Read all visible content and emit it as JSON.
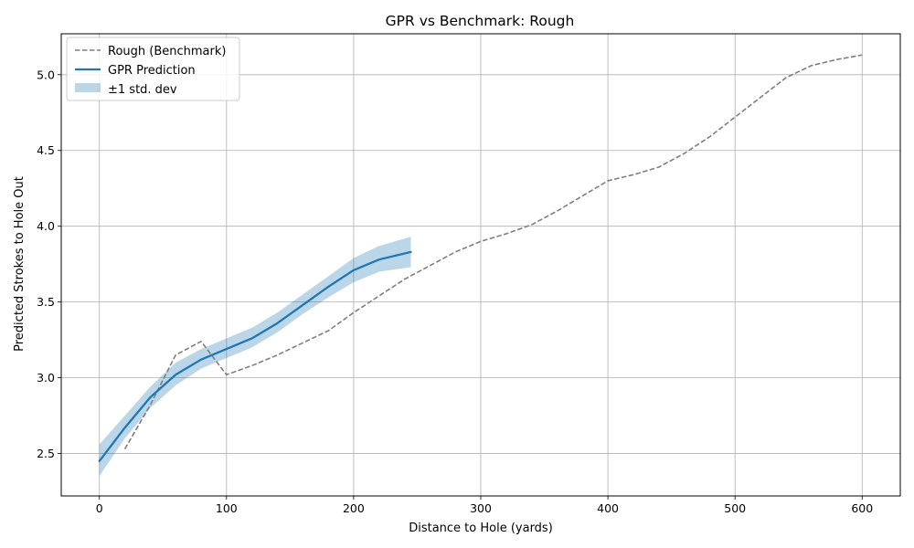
{
  "chart_data": {
    "type": "line",
    "title": "GPR vs Benchmark: Rough",
    "xlabel": "Distance to Hole (yards)",
    "ylabel": "Predicted Strokes to Hole Out",
    "xlim": [
      -30,
      630
    ],
    "ylim": [
      2.22,
      5.27
    ],
    "xticks": [
      0,
      100,
      200,
      300,
      400,
      500,
      600
    ],
    "yticks": [
      2.5,
      3.0,
      3.5,
      4.0,
      4.5,
      5.0
    ],
    "xtick_labels": [
      "0",
      "100",
      "200",
      "300",
      "400",
      "500",
      "600"
    ],
    "ytick_labels": [
      "2.5",
      "3.0",
      "3.5",
      "4.0",
      "4.5",
      "5.0"
    ],
    "grid": true,
    "legend_position": "top-left",
    "series": [
      {
        "name": "Rough (Benchmark)",
        "style": "dashed",
        "color": "#7f7f7f",
        "x": [
          20,
          40,
          60,
          80,
          100,
          120,
          140,
          160,
          180,
          200,
          220,
          240,
          260,
          280,
          300,
          320,
          340,
          360,
          380,
          400,
          420,
          440,
          460,
          480,
          500,
          520,
          540,
          560,
          580,
          600
        ],
        "y": [
          2.53,
          2.82,
          3.15,
          3.24,
          3.02,
          3.08,
          3.15,
          3.23,
          3.31,
          3.43,
          3.54,
          3.65,
          3.74,
          3.83,
          3.9,
          3.95,
          4.01,
          4.1,
          4.2,
          4.3,
          4.34,
          4.39,
          4.48,
          4.59,
          4.72,
          4.85,
          4.98,
          5.06,
          5.1,
          5.13
        ]
      },
      {
        "name": "GPR Prediction",
        "style": "solid",
        "color": "#1f77b4",
        "x": [
          0,
          20,
          40,
          60,
          80,
          100,
          120,
          140,
          160,
          180,
          200,
          220,
          245
        ],
        "y": [
          2.45,
          2.67,
          2.87,
          3.02,
          3.12,
          3.19,
          3.26,
          3.36,
          3.48,
          3.6,
          3.71,
          3.78,
          3.83
        ]
      }
    ],
    "band": {
      "name": "±1 std. dev",
      "color": "#1f77b4",
      "opacity": 0.3,
      "x": [
        0,
        20,
        40,
        60,
        80,
        100,
        120,
        140,
        160,
        180,
        200,
        220,
        245
      ],
      "lower": [
        2.35,
        2.6,
        2.8,
        2.95,
        3.06,
        3.13,
        3.2,
        3.3,
        3.42,
        3.53,
        3.63,
        3.7,
        3.73
      ],
      "upper": [
        2.56,
        2.75,
        2.94,
        3.1,
        3.19,
        3.26,
        3.33,
        3.43,
        3.55,
        3.67,
        3.79,
        3.87,
        3.93
      ]
    }
  }
}
